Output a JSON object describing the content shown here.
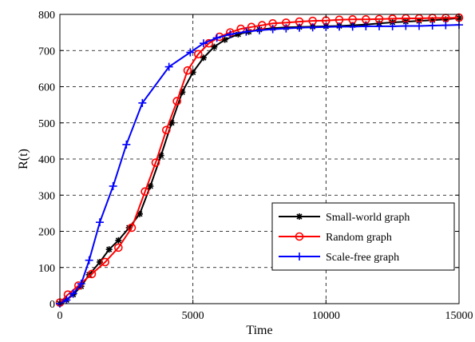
{
  "chart_data": {
    "type": "line",
    "title": "",
    "xlabel": "Time",
    "ylabel": "R(t)",
    "xlim": [
      0,
      15000
    ],
    "ylim": [
      0,
      800
    ],
    "xticks": [
      0,
      5000,
      10000,
      15000
    ],
    "xtick_labels": [
      "0",
      "5000",
      "10000",
      "15000"
    ],
    "yticks": [
      0,
      100,
      200,
      300,
      400,
      500,
      600,
      700,
      800
    ],
    "ytick_labels": [
      "0",
      "100",
      "200",
      "300",
      "400",
      "500",
      "600",
      "700",
      "800"
    ],
    "grid": true,
    "legend_position": "lower-right",
    "series": [
      {
        "name": "Small-world graph",
        "color": "#000000",
        "marker": "asterisk",
        "points": [
          [
            0,
            0
          ],
          [
            250,
            10
          ],
          [
            500,
            25
          ],
          [
            800,
            48
          ],
          [
            1100,
            80
          ],
          [
            1500,
            115
          ],
          [
            1850,
            150
          ],
          [
            2200,
            175
          ],
          [
            2600,
            210
          ],
          [
            3000,
            248
          ],
          [
            3400,
            325
          ],
          [
            3800,
            410
          ],
          [
            4200,
            500
          ],
          [
            4600,
            585
          ],
          [
            5000,
            640
          ],
          [
            5400,
            680
          ],
          [
            5800,
            710
          ],
          [
            6200,
            730
          ],
          [
            6700,
            745
          ],
          [
            7100,
            752
          ],
          [
            7500,
            758
          ],
          [
            8000,
            762
          ],
          [
            8500,
            764
          ],
          [
            9000,
            765
          ],
          [
            9500,
            766
          ],
          [
            10000,
            767
          ],
          [
            10500,
            768
          ],
          [
            11000,
            770
          ],
          [
            11500,
            772
          ],
          [
            12000,
            775
          ],
          [
            12500,
            778
          ],
          [
            13000,
            780
          ],
          [
            13500,
            782
          ],
          [
            14000,
            784
          ],
          [
            14500,
            786
          ],
          [
            15000,
            790
          ]
        ]
      },
      {
        "name": "Random graph",
        "color": "#ff0000",
        "marker": "circle",
        "points": [
          [
            0,
            3
          ],
          [
            300,
            25
          ],
          [
            700,
            50
          ],
          [
            1200,
            82
          ],
          [
            1700,
            115
          ],
          [
            2200,
            155
          ],
          [
            2700,
            210
          ],
          [
            3200,
            310
          ],
          [
            3600,
            390
          ],
          [
            4000,
            480
          ],
          [
            4400,
            560
          ],
          [
            4800,
            645
          ],
          [
            5200,
            690
          ],
          [
            5600,
            720
          ],
          [
            6000,
            738
          ],
          [
            6400,
            750
          ],
          [
            6800,
            760
          ],
          [
            7200,
            765
          ],
          [
            7600,
            770
          ],
          [
            8000,
            775
          ],
          [
            8500,
            777
          ],
          [
            9000,
            780
          ],
          [
            9500,
            782
          ],
          [
            10000,
            783
          ],
          [
            10500,
            785
          ],
          [
            11000,
            786
          ],
          [
            11500,
            786
          ],
          [
            12000,
            787
          ],
          [
            12500,
            788
          ],
          [
            13000,
            789
          ],
          [
            13500,
            789
          ],
          [
            14000,
            790
          ],
          [
            14500,
            790
          ],
          [
            15000,
            791
          ]
        ]
      },
      {
        "name": "Scale-free graph",
        "color": "#0000ff",
        "marker": "plus",
        "points": [
          [
            0,
            0
          ],
          [
            250,
            10
          ],
          [
            500,
            28
          ],
          [
            800,
            55
          ],
          [
            1100,
            120
          ],
          [
            1500,
            225
          ],
          [
            2000,
            325
          ],
          [
            2500,
            440
          ],
          [
            3100,
            555
          ],
          [
            4100,
            655
          ],
          [
            4900,
            695
          ],
          [
            5400,
            720
          ],
          [
            5900,
            735
          ],
          [
            6400,
            745
          ],
          [
            7000,
            752
          ],
          [
            7500,
            756
          ],
          [
            8000,
            759
          ],
          [
            8500,
            761
          ],
          [
            9000,
            763
          ],
          [
            9500,
            764
          ],
          [
            10000,
            765
          ],
          [
            10500,
            766
          ],
          [
            11000,
            766
          ],
          [
            11500,
            767
          ],
          [
            12000,
            767
          ],
          [
            12500,
            767
          ],
          [
            13000,
            768
          ],
          [
            13500,
            768
          ],
          [
            14000,
            769
          ],
          [
            14500,
            770
          ],
          [
            15000,
            771
          ]
        ]
      }
    ]
  }
}
